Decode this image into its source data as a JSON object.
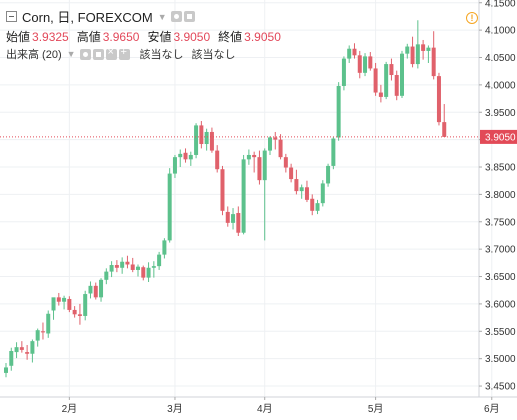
{
  "legend": {
    "symbol": "Corn, 日, FOREXCOM",
    "open_label": "始値",
    "open_value": "3.9325",
    "high_label": "高値",
    "high_value": "3.9650",
    "low_label": "安値",
    "low_value": "3.9050",
    "close_label": "終値",
    "close_value": "3.9050",
    "volume_label": "出来高 (20)",
    "na_1": "該当なし",
    "na_2": "該当なし"
  },
  "alert_icon": "!",
  "icons": {
    "collapse": "minus-square-icon",
    "settings": "eye-icon",
    "format": "gear-icon",
    "close": "close-icon",
    "alert": "exclamation-circle-icon"
  },
  "colors": {
    "up": "#5cc18c",
    "down": "#e0616b",
    "price_line": "#e24a57",
    "price_label_bg": "#e24a57",
    "grid": "#eef0f3",
    "axis_text": "#333333",
    "background": "#ffffff"
  },
  "chart_data": {
    "type": "candlestick",
    "title": "Corn, 日, FOREXCOM",
    "x_ticks": [
      {
        "label": "2月",
        "index": 12
      },
      {
        "label": "3月",
        "index": 32
      },
      {
        "label": "4月",
        "index": 49
      },
      {
        "label": "5月",
        "index": 70
      },
      {
        "label": "6月",
        "index": 92
      }
    ],
    "y_ticks": [
      "4.1500",
      "4.1000",
      "4.0500",
      "4.0000",
      "3.9500",
      "3.9000",
      "3.8500",
      "3.8000",
      "3.7500",
      "3.7000",
      "3.6500",
      "3.6000",
      "3.5500",
      "3.5000",
      "3.4500"
    ],
    "ylim": [
      3.43,
      4.155
    ],
    "last_price": "3.9050",
    "candles": [
      [
        3.474,
        3.492,
        3.466,
        3.484
      ],
      [
        3.487,
        3.52,
        3.478,
        3.514
      ],
      [
        3.512,
        3.53,
        3.501,
        3.521
      ],
      [
        3.521,
        3.532,
        3.511,
        3.516
      ],
      [
        3.512,
        3.525,
        3.498,
        3.509
      ],
      [
        3.509,
        3.535,
        3.493,
        3.532
      ],
      [
        3.533,
        3.555,
        3.522,
        3.552
      ],
      [
        3.55,
        3.566,
        3.535,
        3.548
      ],
      [
        3.546,
        3.588,
        3.538,
        3.582
      ],
      [
        3.588,
        3.61,
        3.571,
        3.612
      ],
      [
        3.612,
        3.62,
        3.597,
        3.604
      ],
      [
        3.604,
        3.615,
        3.59,
        3.611
      ],
      [
        3.609,
        3.614,
        3.585,
        3.589
      ],
      [
        3.589,
        3.596,
        3.575,
        3.581
      ],
      [
        3.581,
        3.6,
        3.562,
        3.578
      ],
      [
        3.578,
        3.624,
        3.57,
        3.618
      ],
      [
        3.619,
        3.641,
        3.61,
        3.633
      ],
      [
        3.633,
        3.639,
        3.608,
        3.612
      ],
      [
        3.612,
        3.647,
        3.604,
        3.644
      ],
      [
        3.644,
        3.665,
        3.636,
        3.659
      ],
      [
        3.659,
        3.678,
        3.649,
        3.671
      ],
      [
        3.671,
        3.68,
        3.658,
        3.666
      ],
      [
        3.666,
        3.685,
        3.655,
        3.677
      ],
      [
        3.677,
        3.688,
        3.665,
        3.672
      ],
      [
        3.672,
        3.684,
        3.658,
        3.662
      ],
      [
        3.662,
        3.672,
        3.65,
        3.668
      ],
      [
        3.667,
        3.67,
        3.643,
        3.648
      ],
      [
        3.648,
        3.676,
        3.64,
        3.666
      ],
      [
        3.666,
        3.678,
        3.648,
        3.669
      ],
      [
        3.669,
        3.695,
        3.662,
        3.69
      ],
      [
        3.69,
        3.72,
        3.683,
        3.716
      ],
      [
        3.716,
        3.848,
        3.712,
        3.838
      ],
      [
        3.838,
        3.872,
        3.83,
        3.868
      ],
      [
        3.868,
        3.882,
        3.85,
        3.874
      ],
      [
        3.876,
        3.884,
        3.858,
        3.864
      ],
      [
        3.864,
        3.878,
        3.852,
        3.872
      ],
      [
        3.872,
        3.93,
        3.866,
        3.926
      ],
      [
        3.926,
        3.934,
        3.884,
        3.892
      ],
      [
        3.892,
        3.92,
        3.88,
        3.914
      ],
      [
        3.914,
        3.922,
        3.876,
        3.88
      ],
      [
        3.88,
        3.89,
        3.84,
        3.846
      ],
      [
        3.846,
        3.852,
        3.762,
        3.77
      ],
      [
        3.768,
        3.778,
        3.741,
        3.748
      ],
      [
        3.748,
        3.775,
        3.736,
        3.764
      ],
      [
        3.766,
        3.778,
        3.724,
        3.73
      ],
      [
        3.73,
        3.872,
        3.727,
        3.864
      ],
      [
        3.864,
        3.882,
        3.854,
        3.872
      ],
      [
        3.872,
        3.878,
        3.84,
        3.868
      ],
      [
        3.868,
        3.88,
        3.818,
        3.826
      ],
      [
        3.826,
        3.884,
        3.716,
        3.88
      ],
      [
        3.88,
        3.906,
        3.872,
        3.904
      ],
      [
        3.904,
        3.914,
        3.882,
        3.9
      ],
      [
        3.9,
        3.91,
        3.864,
        3.868
      ],
      [
        3.868,
        3.874,
        3.84,
        3.849
      ],
      [
        3.849,
        3.856,
        3.822,
        3.828
      ],
      [
        3.828,
        3.845,
        3.8,
        3.806
      ],
      [
        3.806,
        3.818,
        3.792,
        3.813
      ],
      [
        3.813,
        3.825,
        3.786,
        3.79
      ],
      [
        3.792,
        3.8,
        3.762,
        3.77
      ],
      [
        3.77,
        3.79,
        3.764,
        3.784
      ],
      [
        3.784,
        3.826,
        3.778,
        3.82
      ],
      [
        3.82,
        3.856,
        3.814,
        3.852
      ],
      [
        3.852,
        3.905,
        3.846,
        3.902
      ],
      [
        3.904,
        4.005,
        3.898,
        3.998
      ],
      [
        3.998,
        4.052,
        3.99,
        4.048
      ],
      [
        4.048,
        4.072,
        4.04,
        4.066
      ],
      [
        4.066,
        4.076,
        4.048,
        4.054
      ],
      [
        4.054,
        4.062,
        4.012,
        4.022
      ],
      [
        4.022,
        4.058,
        4.016,
        4.052
      ],
      [
        4.052,
        4.06,
        4.026,
        4.03
      ],
      [
        4.03,
        4.04,
        3.98,
        3.986
      ],
      [
        3.986,
        4.0,
        3.968,
        3.978
      ],
      [
        3.978,
        4.042,
        3.974,
        4.038
      ],
      [
        4.038,
        4.048,
        4.008,
        4.018
      ],
      [
        4.018,
        4.026,
        3.972,
        3.98
      ],
      [
        3.98,
        4.062,
        3.976,
        4.057
      ],
      [
        4.057,
        4.075,
        4.048,
        4.07
      ],
      [
        4.07,
        4.088,
        4.032,
        4.038
      ],
      [
        4.038,
        4.118,
        4.03,
        4.074
      ],
      [
        4.074,
        4.082,
        4.046,
        4.062
      ],
      [
        4.062,
        4.072,
        4.04,
        4.068
      ],
      [
        4.068,
        4.098,
        4.01,
        4.016
      ],
      [
        4.016,
        4.022,
        3.926,
        3.932
      ],
      [
        3.932,
        3.965,
        3.905,
        3.905
      ]
    ]
  }
}
